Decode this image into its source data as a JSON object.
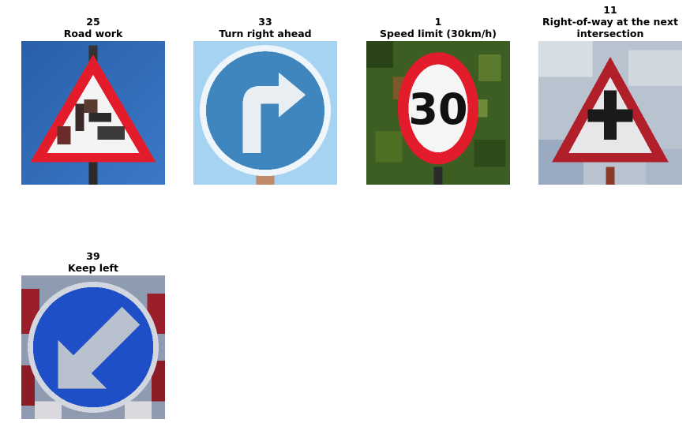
{
  "grid": [
    {
      "class_id": "25",
      "label": "Road work"
    },
    {
      "class_id": "33",
      "label": "Turn right ahead"
    },
    {
      "class_id": "1",
      "label": "Speed limit (30km/h)"
    },
    {
      "class_id": "11",
      "label_line1": "Right-of-way at the next",
      "label_line2": "intersection"
    },
    {
      "class_id": "39",
      "label": "Keep left"
    }
  ],
  "signs": {
    "speed_number": "30"
  }
}
